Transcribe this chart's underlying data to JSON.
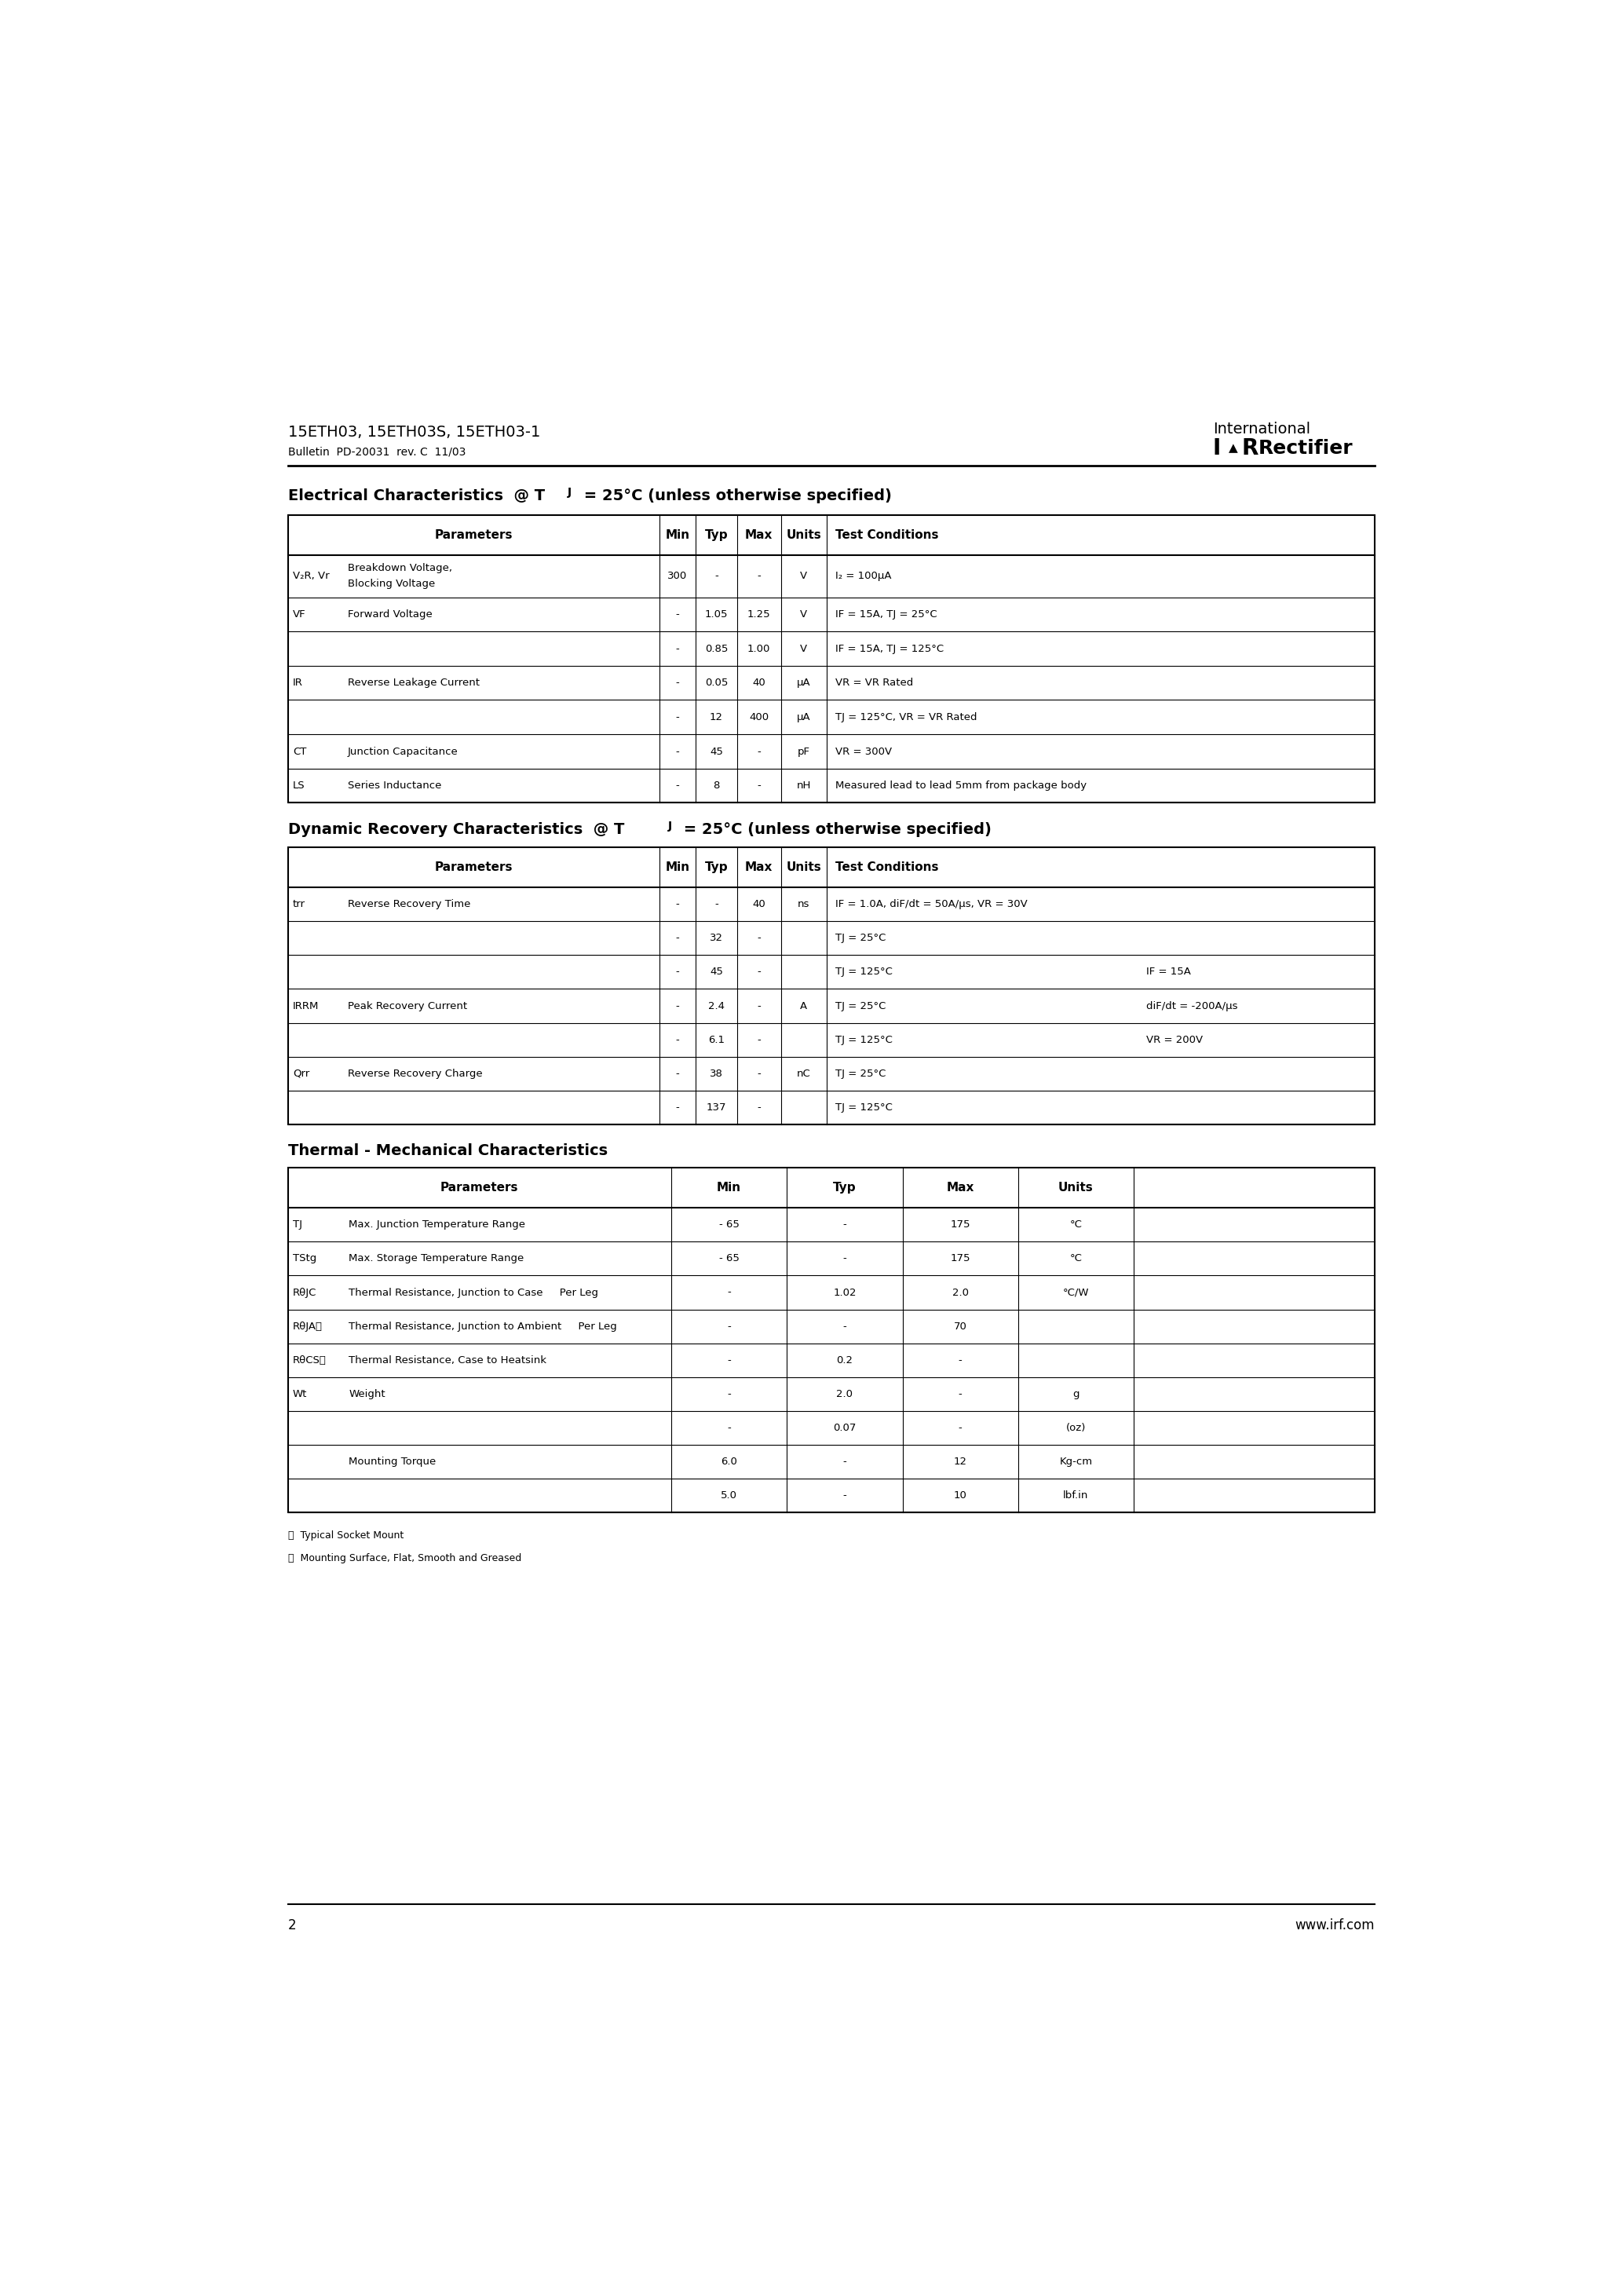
{
  "page_title": "15ETH03, 15ETH03S, 15ETH03-1",
  "bulletin": "Bulletin  PD-20031  rev. C  11/03",
  "page_num": "2",
  "website": "www.irf.com",
  "footnotes": [
    "ⓘ  Typical Socket Mount",
    "ⓙ  Mounting Surface, Flat, Smooth and Greased"
  ]
}
